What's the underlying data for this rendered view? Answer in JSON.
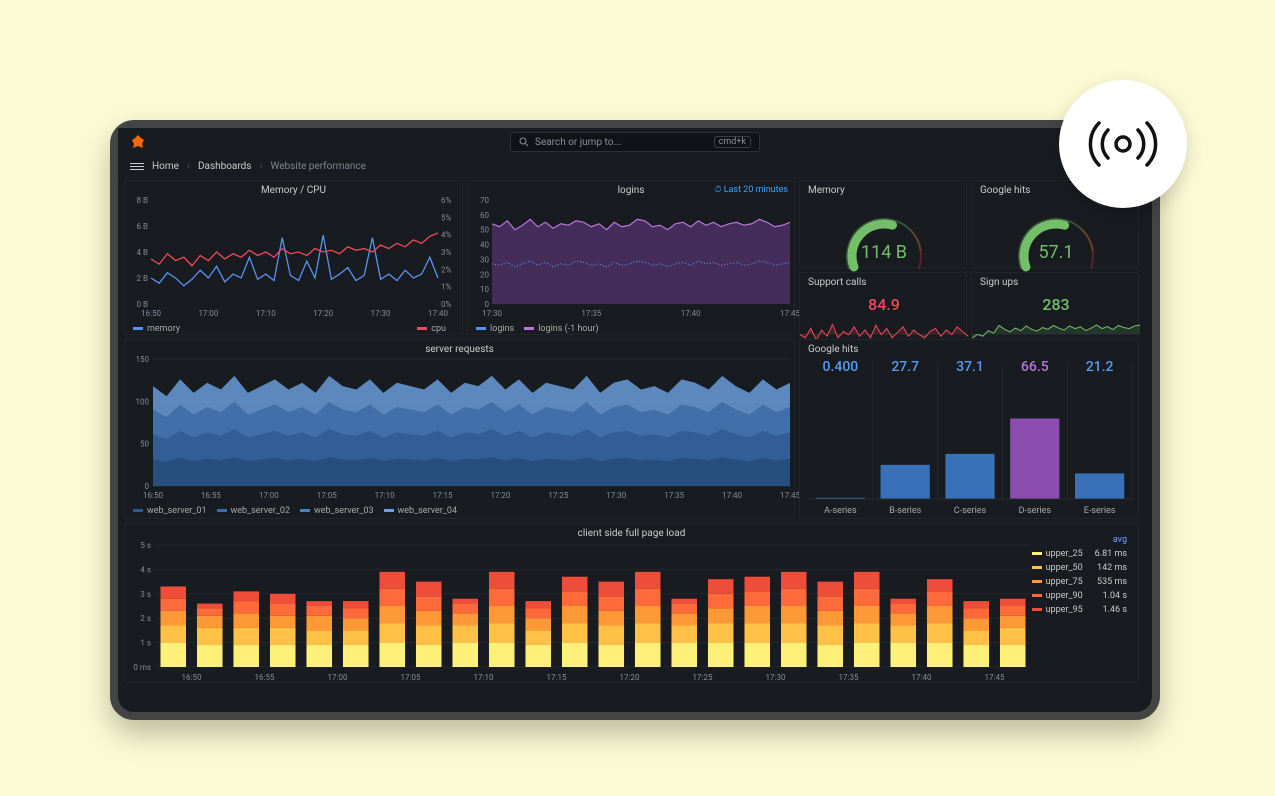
{
  "page_bg": "#fbfad4",
  "frame_border": "#444444",
  "dashboard_bg": "#181b1f",
  "search": {
    "placeholder": "Search or jump to...",
    "shortcut": "cmd+k"
  },
  "breadcrumbs": [
    "Home",
    "Dashboards",
    "Website performance"
  ],
  "panel_memcpu": {
    "title": "Memory / CPU",
    "y_left": {
      "min": 0,
      "max": 8,
      "ticks": [
        "0 B",
        "2 B",
        "4 B",
        "6 B",
        "8 B"
      ]
    },
    "y_right": {
      "min": 0,
      "max": 6,
      "ticks": [
        "0%",
        "1%",
        "2%",
        "3%",
        "4%",
        "5%",
        "6%"
      ]
    },
    "x_ticks": [
      "16:50",
      "17:00",
      "17:10",
      "17:20",
      "17:30",
      "17:40"
    ],
    "series_memory": {
      "color": "#5794f2",
      "label": "memory",
      "values": [
        2.0,
        1.6,
        2.4,
        2.0,
        1.4,
        1.9,
        2.6,
        2.0,
        2.9,
        1.7,
        2.3,
        2.0,
        3.6,
        1.9,
        2.3,
        1.8,
        5.1,
        2.2,
        1.8,
        3.3,
        2.0,
        5.3,
        1.9,
        2.3,
        2.8,
        1.8,
        2.2,
        5.1,
        1.9,
        2.3,
        1.8,
        2.6,
        2.0,
        2.3,
        3.6,
        2.0
      ]
    },
    "series_cpu": {
      "color": "#f2495c",
      "label": "cpu",
      "values": [
        2.6,
        2.3,
        2.9,
        2.5,
        2.7,
        2.2,
        2.8,
        2.5,
        3.0,
        2.6,
        2.9,
        2.7,
        3.1,
        2.8,
        3.0,
        2.7,
        3.2,
        2.9,
        3.0,
        2.8,
        3.2,
        3.0,
        3.1,
        2.9,
        3.3,
        3.1,
        3.2,
        3.0,
        3.4,
        3.2,
        3.5,
        3.3,
        3.7,
        3.5,
        3.9,
        4.1
      ]
    }
  },
  "panel_logins": {
    "title": "logins",
    "time_range_label": "Last 20 minutes",
    "y": {
      "min": 0,
      "max": 70,
      "ticks": [
        "0",
        "10",
        "20",
        "30",
        "40",
        "50",
        "60",
        "70"
      ]
    },
    "x_ticks": [
      "17:30",
      "17:35",
      "17:40",
      "17:45"
    ],
    "series_logins": {
      "color": "#5794f2",
      "label": "logins",
      "values": [
        27,
        26,
        28,
        25,
        27,
        29,
        26,
        28,
        25,
        27,
        26,
        29,
        28,
        26,
        27,
        25,
        28,
        26,
        27,
        29,
        28,
        26,
        27,
        25,
        27,
        28,
        26,
        29,
        27,
        28,
        26,
        27,
        28,
        26,
        27,
        29,
        28,
        26,
        27,
        28
      ]
    },
    "series_logins_prev": {
      "color": "#b877d9",
      "fill": "#6a3d8a",
      "label": "logins (-1 hour)",
      "values": [
        54,
        52,
        56,
        50,
        53,
        57,
        52,
        55,
        51,
        54,
        53,
        56,
        55,
        52,
        54,
        50,
        55,
        52,
        53,
        57,
        56,
        52,
        53,
        50,
        54,
        55,
        52,
        56,
        53,
        55,
        52,
        54,
        55,
        53,
        54,
        57,
        55,
        52,
        53,
        55
      ]
    }
  },
  "gauge_memory": {
    "title": "Memory",
    "value": "114 B",
    "value_color": "#73bf69",
    "min": 0,
    "max": 200,
    "current": 114,
    "thresholds": [
      {
        "to": 140,
        "color": "#73bf69"
      },
      {
        "to": 175,
        "color": "#fc8d3c"
      },
      {
        "to": 200,
        "color": "#e02f44"
      }
    ]
  },
  "gauge_google": {
    "title": "Google hits",
    "value": "57.1",
    "value_color": "#73bf69",
    "min": 0,
    "max": 100,
    "current": 57.1,
    "thresholds": [
      {
        "to": 70,
        "color": "#73bf69"
      },
      {
        "to": 88,
        "color": "#fc8d3c"
      },
      {
        "to": 100,
        "color": "#e02f44"
      }
    ]
  },
  "spark_support": {
    "title": "Support calls",
    "value": "84.9",
    "value_color": "#f2495c",
    "line_color": "#f2495c",
    "fill_color": "rgba(242,73,92,0.18)",
    "values": [
      62,
      58,
      70,
      55,
      68,
      60,
      75,
      58,
      66,
      62,
      72,
      60,
      68,
      58,
      74,
      62,
      70,
      58,
      65,
      72,
      60,
      68,
      62,
      58,
      66,
      70,
      60,
      68,
      62,
      72,
      66,
      60
    ]
  },
  "spark_signups": {
    "title": "Sign ups",
    "value": "283",
    "value_color": "#73bf69",
    "line_color": "#73bf69",
    "fill_color": "rgba(115,191,105,0.16)",
    "values": [
      220,
      235,
      228,
      250,
      240,
      270,
      255,
      245,
      260,
      250,
      268,
      255,
      248,
      262,
      255,
      270,
      260,
      252,
      268,
      258,
      265,
      250,
      260,
      272,
      258,
      266,
      254,
      270,
      262,
      258,
      268,
      272
    ]
  },
  "panel_server": {
    "title": "server requests",
    "y": {
      "min": 0,
      "max": 150,
      "ticks": [
        "0",
        "50",
        "100",
        "150"
      ]
    },
    "x_ticks": [
      "16:50",
      "16:55",
      "17:00",
      "17:05",
      "17:10",
      "17:15",
      "17:20",
      "17:25",
      "17:30",
      "17:35",
      "17:40",
      "17:45"
    ],
    "colors": [
      "#2b5b94",
      "#386eb0",
      "#4a82c8",
      "#6ba1e1"
    ],
    "series": {
      "web_server_01": [
        31,
        28,
        33,
        29,
        32,
        30,
        34,
        29,
        31,
        33,
        30,
        32,
        29,
        34,
        31,
        30,
        33,
        29,
        32,
        31,
        30,
        33,
        29,
        32,
        31,
        34,
        30,
        33,
        29,
        32,
        31,
        30,
        34,
        29,
        32,
        33,
        30,
        31,
        29,
        33,
        32,
        30,
        34,
        31,
        29,
        33,
        30,
        32
      ],
      "web_server_02": [
        30,
        27,
        32,
        28,
        31,
        29,
        33,
        28,
        30,
        32,
        29,
        31,
        28,
        33,
        30,
        29,
        32,
        28,
        31,
        30,
        29,
        32,
        28,
        31,
        30,
        33,
        29,
        32,
        28,
        31,
        30,
        29,
        33,
        28,
        31,
        32,
        29,
        30,
        28,
        32,
        31,
        29,
        33,
        30,
        28,
        32,
        29,
        31
      ],
      "web_server_03": [
        29,
        26,
        31,
        27,
        30,
        28,
        32,
        27,
        29,
        31,
        28,
        30,
        27,
        32,
        29,
        28,
        31,
        27,
        30,
        29,
        28,
        31,
        27,
        30,
        29,
        32,
        28,
        31,
        27,
        30,
        29,
        28,
        32,
        27,
        30,
        31,
        28,
        29,
        27,
        31,
        30,
        28,
        32,
        29,
        27,
        31,
        28,
        30
      ],
      "web_server_04": [
        28,
        25,
        30,
        26,
        29,
        27,
        31,
        26,
        28,
        30,
        27,
        29,
        26,
        31,
        28,
        27,
        30,
        26,
        29,
        28,
        27,
        30,
        26,
        29,
        28,
        31,
        27,
        30,
        26,
        29,
        28,
        27,
        31,
        26,
        29,
        30,
        27,
        28,
        26,
        30,
        29,
        27,
        31,
        28,
        26,
        30,
        27,
        29
      ]
    },
    "legend": [
      "web_server_01",
      "web_server_02",
      "web_server_03",
      "web_server_04"
    ]
  },
  "panel_hits_bars": {
    "title": "Google hits",
    "series": [
      {
        "name": "A-series",
        "value": "0.400",
        "height_pct": 0.01,
        "color": "#3871b8",
        "value_color": "#579cf2"
      },
      {
        "name": "B-series",
        "value": "27.7",
        "height_pct": 0.28,
        "color": "#3871b8",
        "value_color": "#579cf2"
      },
      {
        "name": "C-series",
        "value": "37.1",
        "height_pct": 0.37,
        "color": "#3871b8",
        "value_color": "#579cf2"
      },
      {
        "name": "D-series",
        "value": "66.5",
        "height_pct": 0.66,
        "color": "#8c4db0",
        "value_color": "#b877d9"
      },
      {
        "name": "E-series",
        "value": "21.2",
        "height_pct": 0.21,
        "color": "#3871b8",
        "value_color": "#579cf2"
      }
    ]
  },
  "panel_pageload": {
    "title": "client side full page load",
    "y": {
      "min": 0,
      "max": 5,
      "ticks": [
        "0 ms",
        "1 s",
        "2 s",
        "3 s",
        "4 s",
        "5 s"
      ]
    },
    "x_ticks": [
      "16:50",
      "16:55",
      "17:00",
      "17:05",
      "17:10",
      "17:15",
      "17:20",
      "17:25",
      "17:30",
      "17:35",
      "17:40",
      "17:45"
    ],
    "stack_colors": [
      "#fff07a",
      "#ffc247",
      "#ff9836",
      "#ff6a3a",
      "#ee4d3a"
    ],
    "bars": [
      [
        1.0,
        0.7,
        0.6,
        0.5,
        0.5
      ],
      [
        0.9,
        0.7,
        0.5,
        0.3,
        0.2
      ],
      [
        0.9,
        0.7,
        0.6,
        0.5,
        0.4
      ],
      [
        0.9,
        0.7,
        0.5,
        0.5,
        0.4
      ],
      [
        0.9,
        0.6,
        0.6,
        0.4,
        0.2
      ],
      [
        0.9,
        0.6,
        0.5,
        0.4,
        0.3
      ],
      [
        1.0,
        0.8,
        0.7,
        0.7,
        0.7
      ],
      [
        0.9,
        0.8,
        0.6,
        0.6,
        0.6
      ],
      [
        1.0,
        0.7,
        0.5,
        0.4,
        0.2
      ],
      [
        1.0,
        0.8,
        0.7,
        0.7,
        0.7
      ],
      [
        0.9,
        0.6,
        0.5,
        0.4,
        0.3
      ],
      [
        1.0,
        0.8,
        0.7,
        0.6,
        0.6
      ],
      [
        0.9,
        0.8,
        0.6,
        0.6,
        0.6
      ],
      [
        1.0,
        0.8,
        0.7,
        0.7,
        0.7
      ],
      [
        1.0,
        0.7,
        0.5,
        0.4,
        0.2
      ],
      [
        1.0,
        0.8,
        0.6,
        0.6,
        0.6
      ],
      [
        1.0,
        0.8,
        0.7,
        0.6,
        0.6
      ],
      [
        1.0,
        0.8,
        0.7,
        0.7,
        0.7
      ],
      [
        0.9,
        0.8,
        0.6,
        0.6,
        0.6
      ],
      [
        1.0,
        0.8,
        0.7,
        0.7,
        0.7
      ],
      [
        1.0,
        0.7,
        0.5,
        0.4,
        0.2
      ],
      [
        1.0,
        0.8,
        0.7,
        0.6,
        0.5
      ],
      [
        0.9,
        0.6,
        0.5,
        0.4,
        0.3
      ],
      [
        0.9,
        0.7,
        0.5,
        0.4,
        0.3
      ]
    ],
    "legend": [
      {
        "name": "upper_25",
        "avg": "6.81 ms",
        "color": "#fff07a"
      },
      {
        "name": "upper_50",
        "avg": "142 ms",
        "color": "#ffc247"
      },
      {
        "name": "upper_75",
        "avg": "535 ms",
        "color": "#ff9836"
      },
      {
        "name": "upper_90",
        "avg": "1.04 s",
        "color": "#ff6a3a"
      },
      {
        "name": "upper_95",
        "avg": "1.46 s",
        "color": "#ee4d3a"
      }
    ]
  }
}
